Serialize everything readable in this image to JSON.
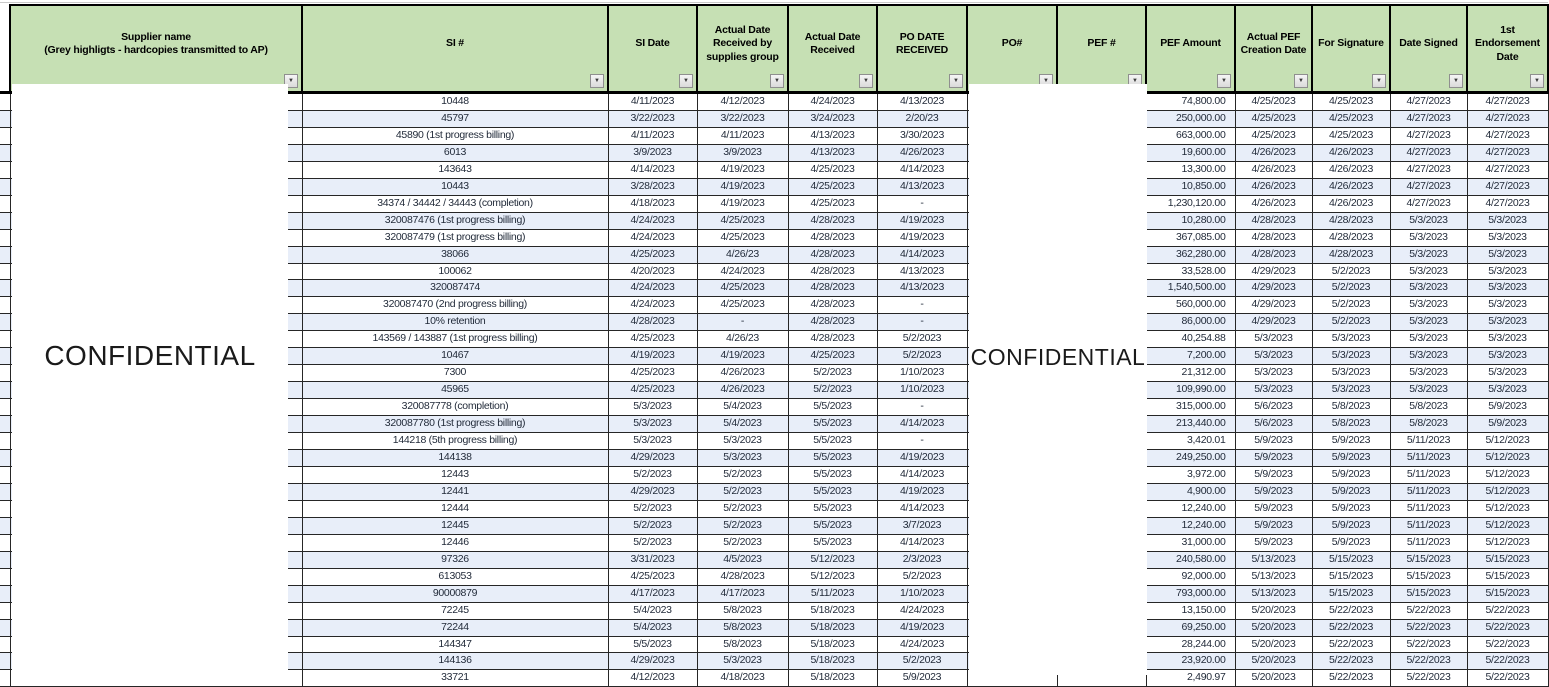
{
  "watermarks": {
    "supplier_column": "CONFIDENTIAL",
    "po_pef_columns": "CONFIDENTIAL"
  },
  "table": {
    "columns": [
      {
        "id": "supplier",
        "label": "Supplier name\n(Grey highligts - hardcopies transmitted to AP)",
        "kind": "redacted",
        "filter": true
      },
      {
        "id": "si",
        "label": "SI #",
        "kind": "center",
        "filter": true
      },
      {
        "id": "si_date",
        "label": "SI Date",
        "kind": "center",
        "filter": true
      },
      {
        "id": "received_supplies",
        "label": "Actual Date Received by supplies group",
        "kind": "center",
        "filter": true
      },
      {
        "id": "received",
        "label": "Actual Date Received",
        "kind": "center",
        "filter": true
      },
      {
        "id": "po_date",
        "label": "PO DATE RECEIVED",
        "kind": "center",
        "filter": true
      },
      {
        "id": "po",
        "label": "PO#",
        "kind": "redacted",
        "filter": true
      },
      {
        "id": "pef",
        "label": "PEF #",
        "kind": "redacted",
        "filter": true
      },
      {
        "id": "pef_amount",
        "label": "PEF Amount",
        "kind": "amount",
        "filter": true
      },
      {
        "id": "pef_creation",
        "label": "Actual PEF Creation Date",
        "kind": "center",
        "filter": true
      },
      {
        "id": "for_signature",
        "label": "For Signature",
        "kind": "center",
        "filter": true
      },
      {
        "id": "date_signed",
        "label": "Date Signed",
        "kind": "center",
        "filter": true
      },
      {
        "id": "endorsement",
        "label": "1st Endorsement Date",
        "kind": "center",
        "filter": true
      }
    ],
    "filter_icon": "▼",
    "colors": {
      "header_green": "#c6e0b4",
      "stripe_blue": "#e8eef9",
      "grid_black": "#262626",
      "text": "#1f2837"
    },
    "rows": [
      [
        "",
        "10448",
        "4/11/2023",
        "4/12/2023",
        "4/24/2023",
        "4/13/2023",
        "",
        "",
        "74,800.00",
        "4/25/2023",
        "4/25/2023",
        "4/27/2023",
        "4/27/2023"
      ],
      [
        "",
        "45797",
        "3/22/2023",
        "3/22/2023",
        "3/24/2023",
        "2/20/23",
        "",
        "",
        "250,000.00",
        "4/25/2023",
        "4/25/2023",
        "4/27/2023",
        "4/27/2023"
      ],
      [
        "",
        "45890 (1st progress billing)",
        "4/11/2023",
        "4/11/2023",
        "4/13/2023",
        "3/30/2023",
        "",
        "",
        "663,000.00",
        "4/25/2023",
        "4/25/2023",
        "4/27/2023",
        "4/27/2023"
      ],
      [
        "",
        "6013",
        "3/9/2023",
        "3/9/2023",
        "4/13/2023",
        "4/26/2023",
        "",
        "",
        "19,600.00",
        "4/26/2023",
        "4/26/2023",
        "4/27/2023",
        "4/27/2023"
      ],
      [
        "",
        "143643",
        "4/14/2023",
        "4/19/2023",
        "4/25/2023",
        "4/14/2023",
        "",
        "",
        "13,300.00",
        "4/26/2023",
        "4/26/2023",
        "4/27/2023",
        "4/27/2023"
      ],
      [
        "",
        "10443",
        "3/28/2023",
        "4/19/2023",
        "4/25/2023",
        "4/13/2023",
        "",
        "",
        "10,850.00",
        "4/26/2023",
        "4/26/2023",
        "4/27/2023",
        "4/27/2023"
      ],
      [
        "",
        "34374 / 34442 / 34443 (completion)",
        "4/18/2023",
        "4/19/2023",
        "4/25/2023",
        "-",
        "",
        "",
        "1,230,120.00",
        "4/26/2023",
        "4/26/2023",
        "4/27/2023",
        "4/27/2023"
      ],
      [
        "",
        "320087476 (1st progress billing)",
        "4/24/2023",
        "4/25/2023",
        "4/28/2023",
        "4/19/2023",
        "",
        "",
        "10,280.00",
        "4/28/2023",
        "4/28/2023",
        "5/3/2023",
        "5/3/2023"
      ],
      [
        "",
        "320087479 (1st progress billing)",
        "4/24/2023",
        "4/25/2023",
        "4/28/2023",
        "4/19/2023",
        "",
        "",
        "367,085.00",
        "4/28/2023",
        "4/28/2023",
        "5/3/2023",
        "5/3/2023"
      ],
      [
        "",
        "38066",
        "4/25/2023",
        "4/26/23",
        "4/28/2023",
        "4/14/2023",
        "",
        "",
        "362,280.00",
        "4/28/2023",
        "4/28/2023",
        "5/3/2023",
        "5/3/2023"
      ],
      [
        "",
        "100062",
        "4/20/2023",
        "4/24/2023",
        "4/28/2023",
        "4/13/2023",
        "",
        "",
        "33,528.00",
        "4/29/2023",
        "5/2/2023",
        "5/3/2023",
        "5/3/2023"
      ],
      [
        "",
        "320087474",
        "4/24/2023",
        "4/25/2023",
        "4/28/2023",
        "4/13/2023",
        "",
        "",
        "1,540,500.00",
        "4/29/2023",
        "5/2/2023",
        "5/3/2023",
        "5/3/2023"
      ],
      [
        "",
        "320087470 (2nd progress billing)",
        "4/24/2023",
        "4/25/2023",
        "4/28/2023",
        "-",
        "",
        "",
        "560,000.00",
        "4/29/2023",
        "5/2/2023",
        "5/3/2023",
        "5/3/2023"
      ],
      [
        "",
        "10% retention",
        "4/28/2023",
        "-",
        "4/28/2023",
        "-",
        "",
        "",
        "86,000.00",
        "4/29/2023",
        "5/2/2023",
        "5/3/2023",
        "5/3/2023"
      ],
      [
        "",
        "143569 / 143887 (1st progress billing)",
        "4/25/2023",
        "4/26/23",
        "4/28/2023",
        "5/2/2023",
        "",
        "",
        "40,254.88",
        "5/3/2023",
        "5/3/2023",
        "5/3/2023",
        "5/3/2023"
      ],
      [
        "",
        "10467",
        "4/19/2023",
        "4/19/2023",
        "4/25/2023",
        "5/2/2023",
        "",
        "",
        "7,200.00",
        "5/3/2023",
        "5/3/2023",
        "5/3/2023",
        "5/3/2023"
      ],
      [
        "",
        "7300",
        "4/25/2023",
        "4/26/2023",
        "5/2/2023",
        "1/10/2023",
        "",
        "",
        "21,312.00",
        "5/3/2023",
        "5/3/2023",
        "5/3/2023",
        "5/3/2023"
      ],
      [
        "",
        "45965",
        "4/25/2023",
        "4/26/2023",
        "5/2/2023",
        "1/10/2023",
        "",
        "",
        "109,990.00",
        "5/3/2023",
        "5/3/2023",
        "5/3/2023",
        "5/3/2023"
      ],
      [
        "",
        "320087778 (completion)",
        "5/3/2023",
        "5/4/2023",
        "5/5/2023",
        "-",
        "",
        "",
        "315,000.00",
        "5/6/2023",
        "5/8/2023",
        "5/8/2023",
        "5/9/2023"
      ],
      [
        "",
        "320087780 (1st progress billing)",
        "5/3/2023",
        "5/4/2023",
        "5/5/2023",
        "4/14/2023",
        "",
        "",
        "213,440.00",
        "5/6/2023",
        "5/8/2023",
        "5/8/2023",
        "5/9/2023"
      ],
      [
        "",
        "144218 (5th  progress billing)",
        "5/3/2023",
        "5/3/2023",
        "5/5/2023",
        "-",
        "",
        "",
        "3,420.01",
        "5/9/2023",
        "5/9/2023",
        "5/11/2023",
        "5/12/2023"
      ],
      [
        "",
        "144138",
        "4/29/2023",
        "5/3/2023",
        "5/5/2023",
        "4/19/2023",
        "",
        "",
        "249,250.00",
        "5/9/2023",
        "5/9/2023",
        "5/11/2023",
        "5/12/2023"
      ],
      [
        "",
        "12443",
        "5/2/2023",
        "5/2/2023",
        "5/5/2023",
        "4/14/2023",
        "",
        "",
        "3,972.00",
        "5/9/2023",
        "5/9/2023",
        "5/11/2023",
        "5/12/2023"
      ],
      [
        "",
        "12441",
        "4/29/2023",
        "5/2/2023",
        "5/5/2023",
        "4/19/2023",
        "",
        "",
        "4,900.00",
        "5/9/2023",
        "5/9/2023",
        "5/11/2023",
        "5/12/2023"
      ],
      [
        "",
        "12444",
        "5/2/2023",
        "5/2/2023",
        "5/5/2023",
        "4/14/2023",
        "",
        "",
        "12,240.00",
        "5/9/2023",
        "5/9/2023",
        "5/11/2023",
        "5/12/2023"
      ],
      [
        "",
        "12445",
        "5/2/2023",
        "5/2/2023",
        "5/5/2023",
        "3/7/2023",
        "",
        "",
        "12,240.00",
        "5/9/2023",
        "5/9/2023",
        "5/11/2023",
        "5/12/2023"
      ],
      [
        "",
        "12446",
        "5/2/2023",
        "5/2/2023",
        "5/5/2023",
        "4/14/2023",
        "",
        "",
        "31,000.00",
        "5/9/2023",
        "5/9/2023",
        "5/11/2023",
        "5/12/2023"
      ],
      [
        "",
        "97326",
        "3/31/2023",
        "4/5/2023",
        "5/12/2023",
        "2/3/2023",
        "",
        "",
        "240,580.00",
        "5/13/2023",
        "5/15/2023",
        "5/15/2023",
        "5/15/2023"
      ],
      [
        "",
        "613053",
        "4/25/2023",
        "4/28/2023",
        "5/12/2023",
        "5/2/2023",
        "",
        "",
        "92,000.00",
        "5/13/2023",
        "5/15/2023",
        "5/15/2023",
        "5/15/2023"
      ],
      [
        "",
        "90000879",
        "4/17/2023",
        "4/17/2023",
        "5/11/2023",
        "1/10/2023",
        "",
        "",
        "793,000.00",
        "5/13/2023",
        "5/15/2023",
        "5/15/2023",
        "5/15/2023"
      ],
      [
        "",
        "72245",
        "5/4/2023",
        "5/8/2023",
        "5/18/2023",
        "4/24/2023",
        "",
        "",
        "13,150.00",
        "5/20/2023",
        "5/22/2023",
        "5/22/2023",
        "5/22/2023"
      ],
      [
        "",
        "72244",
        "5/4/2023",
        "5/8/2023",
        "5/18/2023",
        "4/19/2023",
        "",
        "",
        "69,250.00",
        "5/20/2023",
        "5/22/2023",
        "5/22/2023",
        "5/22/2023"
      ],
      [
        "",
        "144347",
        "5/5/2023",
        "5/8/2023",
        "5/18/2023",
        "4/24/2023",
        "",
        "",
        "28,244.00",
        "5/20/2023",
        "5/22/2023",
        "5/22/2023",
        "5/22/2023"
      ],
      [
        "",
        "144136",
        "4/29/2023",
        "5/3/2023",
        "5/18/2023",
        "5/2/2023",
        "",
        "",
        "23,920.00",
        "5/20/2023",
        "5/22/2023",
        "5/22/2023",
        "5/22/2023"
      ],
      [
        "",
        "33721",
        "4/12/2023",
        "4/18/2023",
        "5/18/2023",
        "5/9/2023",
        "",
        "",
        "2,490.97",
        "5/20/2023",
        "5/22/2023",
        "5/22/2023",
        "5/22/2023"
      ]
    ]
  }
}
